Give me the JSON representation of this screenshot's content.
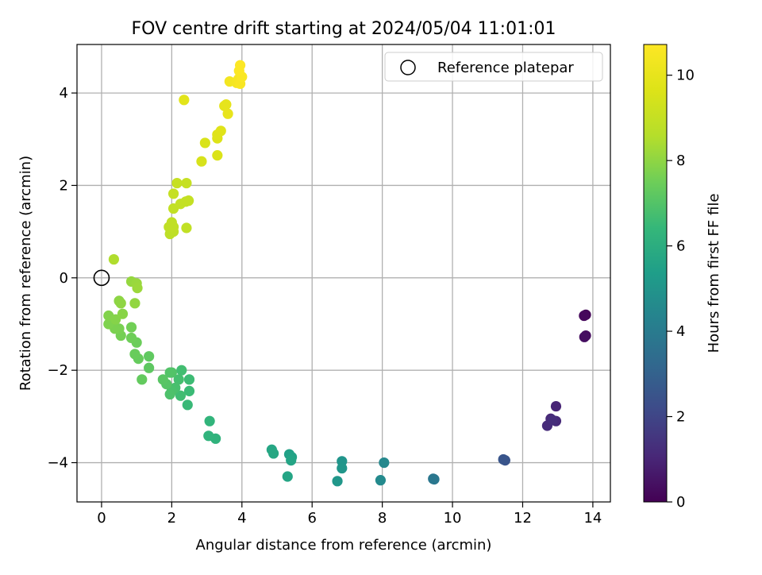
{
  "chart_data": {
    "type": "scatter",
    "title": "FOV centre drift starting at 2024/05/04 11:01:01",
    "xlabel": "Angular distance from reference (arcmin)",
    "ylabel": "Rotation from reference (arcmin)",
    "xlim": [
      -0.7,
      14.5
    ],
    "ylim": [
      -4.85,
      5.05
    ],
    "xticks": [
      "0",
      "2",
      "4",
      "6",
      "8",
      "10",
      "12",
      "14"
    ],
    "yticks": [
      "−4",
      "−2",
      "0",
      "2",
      "4"
    ],
    "grid": true,
    "legend": {
      "position": "top-right",
      "entries": [
        "Reference platepar"
      ]
    },
    "reference_point": {
      "x": 0,
      "y": 0
    },
    "colorbar": {
      "label": "Hours from first FF file",
      "colormap": "viridis",
      "range": [
        0,
        10.72
      ],
      "ticks": [
        "0",
        "2",
        "4",
        "6",
        "8",
        "10"
      ]
    },
    "points": [
      {
        "x": 13.8,
        "y": -0.8,
        "c": 0.1
      },
      {
        "x": 13.75,
        "y": -0.82,
        "c": 0.2
      },
      {
        "x": 13.8,
        "y": -1.25,
        "c": 0.3
      },
      {
        "x": 13.76,
        "y": -1.28,
        "c": 0.35
      },
      {
        "x": 12.95,
        "y": -2.78,
        "c": 1.0
      },
      {
        "x": 12.8,
        "y": -3.05,
        "c": 1.1
      },
      {
        "x": 12.95,
        "y": -3.1,
        "c": 1.15
      },
      {
        "x": 12.7,
        "y": -3.2,
        "c": 1.2
      },
      {
        "x": 12.85,
        "y": -3.08,
        "c": 1.25
      },
      {
        "x": 11.5,
        "y": -3.95,
        "c": 2.5
      },
      {
        "x": 11.45,
        "y": -3.93,
        "c": 2.55
      },
      {
        "x": 9.45,
        "y": -4.35,
        "c": 3.8
      },
      {
        "x": 9.48,
        "y": -4.36,
        "c": 3.85
      },
      {
        "x": 8.05,
        "y": -4.0,
        "c": 4.5
      },
      {
        "x": 7.95,
        "y": -4.38,
        "c": 4.6
      },
      {
        "x": 6.85,
        "y": -3.97,
        "c": 5.0
      },
      {
        "x": 6.85,
        "y": -4.12,
        "c": 5.05
      },
      {
        "x": 6.72,
        "y": -4.4,
        "c": 5.1
      },
      {
        "x": 5.35,
        "y": -3.82,
        "c": 5.5
      },
      {
        "x": 5.42,
        "y": -3.88,
        "c": 5.55
      },
      {
        "x": 5.4,
        "y": -3.95,
        "c": 5.6
      },
      {
        "x": 5.3,
        "y": -4.3,
        "c": 5.65
      },
      {
        "x": 4.85,
        "y": -3.72,
        "c": 5.7
      },
      {
        "x": 4.9,
        "y": -3.8,
        "c": 5.75
      },
      {
        "x": 3.25,
        "y": -3.48,
        "c": 6.2
      },
      {
        "x": 3.05,
        "y": -3.42,
        "c": 6.25
      },
      {
        "x": 3.08,
        "y": -3.1,
        "c": 6.3
      },
      {
        "x": 2.45,
        "y": -2.75,
        "c": 6.5
      },
      {
        "x": 2.5,
        "y": -2.45,
        "c": 6.55
      },
      {
        "x": 2.5,
        "y": -2.2,
        "c": 6.6
      },
      {
        "x": 2.25,
        "y": -2.55,
        "c": 6.65
      },
      {
        "x": 2.28,
        "y": -2.0,
        "c": 6.7
      },
      {
        "x": 2.2,
        "y": -2.2,
        "c": 6.75
      },
      {
        "x": 2.1,
        "y": -2.38,
        "c": 6.8
      },
      {
        "x": 2.0,
        "y": -2.45,
        "c": 6.85
      },
      {
        "x": 1.95,
        "y": -2.52,
        "c": 6.9
      },
      {
        "x": 2.0,
        "y": -2.05,
        "c": 6.95
      },
      {
        "x": 1.95,
        "y": -2.05,
        "c": 7.0
      },
      {
        "x": 1.85,
        "y": -2.3,
        "c": 7.05
      },
      {
        "x": 1.75,
        "y": -2.2,
        "c": 7.1
      },
      {
        "x": 1.35,
        "y": -1.95,
        "c": 7.2
      },
      {
        "x": 1.35,
        "y": -1.7,
        "c": 7.25
      },
      {
        "x": 1.15,
        "y": -2.2,
        "c": 7.3
      },
      {
        "x": 1.05,
        "y": -1.75,
        "c": 7.35
      },
      {
        "x": 0.95,
        "y": -1.65,
        "c": 7.4
      },
      {
        "x": 1.0,
        "y": -1.4,
        "c": 7.45
      },
      {
        "x": 0.85,
        "y": -1.3,
        "c": 7.5
      },
      {
        "x": 0.85,
        "y": -1.07,
        "c": 7.55
      },
      {
        "x": 0.55,
        "y": -1.25,
        "c": 7.6
      },
      {
        "x": 0.5,
        "y": -1.1,
        "c": 7.65
      },
      {
        "x": 0.38,
        "y": -1.1,
        "c": 7.7
      },
      {
        "x": 0.2,
        "y": -1.0,
        "c": 7.75
      },
      {
        "x": 0.2,
        "y": -0.82,
        "c": 7.8
      },
      {
        "x": 0.4,
        "y": -0.9,
        "c": 7.85
      },
      {
        "x": 0.6,
        "y": -0.78,
        "c": 7.9
      },
      {
        "x": 0.5,
        "y": -0.5,
        "c": 7.95
      },
      {
        "x": 0.55,
        "y": -0.55,
        "c": 8.0
      },
      {
        "x": 0.95,
        "y": -0.55,
        "c": 8.05
      },
      {
        "x": 0.85,
        "y": -0.08,
        "c": 8.1
      },
      {
        "x": 1.0,
        "y": -0.12,
        "c": 8.15
      },
      {
        "x": 1.02,
        "y": -0.22,
        "c": 8.2
      },
      {
        "x": 0.35,
        "y": 0.4,
        "c": 8.5
      },
      {
        "x": 1.95,
        "y": 0.95,
        "c": 8.8
      },
      {
        "x": 2.05,
        "y": 1.0,
        "c": 8.82
      },
      {
        "x": 1.92,
        "y": 1.1,
        "c": 8.84
      },
      {
        "x": 2.05,
        "y": 1.1,
        "c": 8.86
      },
      {
        "x": 2.0,
        "y": 1.2,
        "c": 8.88
      },
      {
        "x": 2.42,
        "y": 1.08,
        "c": 8.9
      },
      {
        "x": 2.05,
        "y": 1.5,
        "c": 8.92
      },
      {
        "x": 2.25,
        "y": 1.6,
        "c": 8.94
      },
      {
        "x": 2.4,
        "y": 1.65,
        "c": 8.96
      },
      {
        "x": 2.48,
        "y": 1.67,
        "c": 8.98
      },
      {
        "x": 2.05,
        "y": 1.82,
        "c": 9.0
      },
      {
        "x": 2.15,
        "y": 2.05,
        "c": 9.02
      },
      {
        "x": 2.42,
        "y": 2.05,
        "c": 9.04
      },
      {
        "x": 2.85,
        "y": 2.52,
        "c": 9.5
      },
      {
        "x": 2.95,
        "y": 2.92,
        "c": 9.55
      },
      {
        "x": 3.3,
        "y": 2.65,
        "c": 9.6
      },
      {
        "x": 3.3,
        "y": 3.02,
        "c": 9.65
      },
      {
        "x": 3.3,
        "y": 3.1,
        "c": 9.7
      },
      {
        "x": 3.4,
        "y": 3.18,
        "c": 9.75
      },
      {
        "x": 2.35,
        "y": 3.85,
        "c": 9.8
      },
      {
        "x": 3.5,
        "y": 3.72,
        "c": 9.9
      },
      {
        "x": 3.55,
        "y": 3.75,
        "c": 9.95
      },
      {
        "x": 3.6,
        "y": 3.55,
        "c": 10.0
      },
      {
        "x": 3.65,
        "y": 4.25,
        "c": 10.4
      },
      {
        "x": 3.85,
        "y": 4.22,
        "c": 10.45
      },
      {
        "x": 3.9,
        "y": 4.3,
        "c": 10.5
      },
      {
        "x": 3.95,
        "y": 4.2,
        "c": 10.55
      },
      {
        "x": 4.0,
        "y": 4.35,
        "c": 10.6
      },
      {
        "x": 3.92,
        "y": 4.48,
        "c": 10.65
      },
      {
        "x": 3.95,
        "y": 4.6,
        "c": 10.7
      }
    ]
  }
}
